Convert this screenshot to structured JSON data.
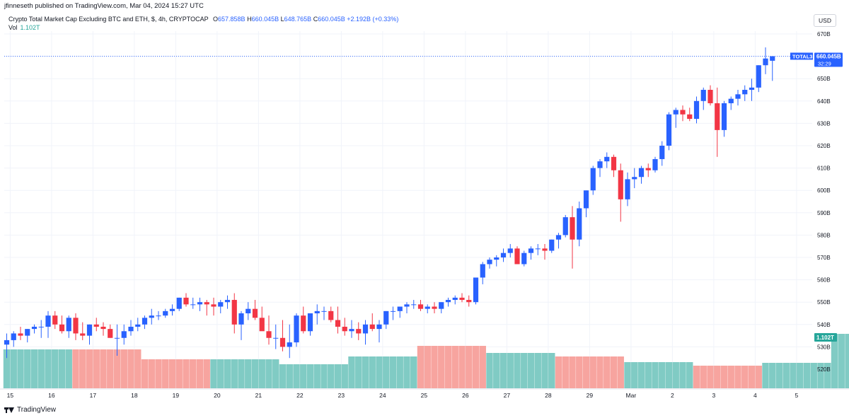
{
  "header": {
    "published_by": "jfinneseth published on TradingView.com, Mar 04, 2024 15:27 UTC",
    "symbol_line": "Crypto Total Market Cap Excluding BTC and ETH, $, 4h, CRYPTOCAP",
    "o_label": "O",
    "o_value": "657.858B",
    "h_label": "H",
    "h_value": "660.045B",
    "l_label": "L",
    "l_value": "648.765B",
    "c_label": "C",
    "c_value": "660.045B",
    "change": "+2.192B (+0.33%)",
    "vol_label": "Vol",
    "vol_value": "1.102T",
    "currency_button": "USD"
  },
  "footer": {
    "brand": "TradingView"
  },
  "colors": {
    "up": "#2962ff",
    "down": "#f23645",
    "vol_up": "#80cbc4",
    "vol_down": "#f7a49f",
    "grid": "#f0f3fa"
  },
  "chart_data": {
    "type": "candlestick",
    "symbol": "TOTAL3",
    "interval": "4h",
    "price_axis": {
      "ylim": [
        514,
        672
      ],
      "ticks": [
        "520B",
        "530B",
        "540B",
        "550B",
        "560B",
        "570B",
        "580B",
        "590B",
        "600B",
        "610B",
        "620B",
        "630B",
        "640B",
        "650B",
        "660B",
        "670B"
      ],
      "tick_values": [
        520,
        530,
        540,
        550,
        560,
        570,
        580,
        590,
        600,
        610,
        620,
        630,
        640,
        650,
        660,
        670
      ]
    },
    "x_axis": {
      "ticks": [
        "15",
        "16",
        "17",
        "18",
        "19",
        "20",
        "21",
        "22",
        "23",
        "24",
        "25",
        "26",
        "27",
        "28",
        "29",
        "Mar",
        "2",
        "3",
        "4",
        "5"
      ],
      "tick_index": [
        0.5,
        6.5,
        12.5,
        18.5,
        24.5,
        30.5,
        36.5,
        42.5,
        48.5,
        54.5,
        60.5,
        66.5,
        72.5,
        78.5,
        84.5,
        90.5,
        96.5,
        102.5,
        108.5,
        114.5
      ]
    },
    "last_price_label": {
      "symbol": "TOTAL3",
      "value": "660.045B",
      "countdown": "32:29",
      "price": 660.045
    },
    "volume_label": {
      "value": "1.102T"
    },
    "candles": [
      [
        531,
        536,
        525,
        533
      ],
      [
        533,
        537,
        530,
        536
      ],
      [
        536,
        539,
        533,
        535
      ],
      [
        535,
        538,
        532,
        538
      ],
      [
        538,
        540,
        536,
        539
      ],
      [
        539,
        542,
        534,
        539
      ],
      [
        539,
        546,
        534,
        544
      ],
      [
        544,
        546,
        538,
        540
      ],
      [
        540,
        544,
        536,
        537
      ],
      [
        537,
        544,
        534,
        543
      ],
      [
        543,
        545,
        533,
        536
      ],
      [
        536,
        541,
        533,
        535
      ],
      [
        535,
        540,
        531,
        540
      ],
      [
        540,
        543,
        537,
        539
      ],
      [
        539,
        541,
        535,
        538
      ],
      [
        538,
        540,
        534,
        534
      ],
      [
        534,
        540,
        526,
        534
      ],
      [
        534,
        540,
        531,
        537
      ],
      [
        537,
        542,
        535,
        539
      ],
      [
        539,
        543,
        537,
        540
      ],
      [
        540,
        544,
        538,
        543
      ],
      [
        543,
        547,
        540,
        544
      ],
      [
        544,
        546,
        542,
        544
      ],
      [
        544,
        547,
        543,
        546
      ],
      [
        546,
        549,
        544,
        547
      ],
      [
        547,
        552,
        546,
        552
      ],
      [
        552,
        554,
        548,
        549
      ],
      [
        549,
        552,
        547,
        549
      ],
      [
        549,
        552,
        546,
        550
      ],
      [
        550,
        551,
        544,
        549
      ],
      [
        549,
        552,
        544,
        548
      ],
      [
        548,
        551,
        545,
        550
      ],
      [
        550,
        553,
        547,
        551
      ],
      [
        551,
        554,
        536,
        540
      ],
      [
        540,
        546,
        533,
        545
      ],
      [
        545,
        550,
        542,
        547
      ],
      [
        547,
        551,
        542,
        543
      ],
      [
        543,
        548,
        538,
        537
      ],
      [
        537,
        544,
        531,
        534
      ],
      [
        534,
        540,
        529,
        534
      ],
      [
        534,
        542,
        528,
        530
      ],
      [
        530,
        540,
        525,
        532
      ],
      [
        532,
        545,
        530,
        544
      ],
      [
        544,
        548,
        536,
        537
      ],
      [
        537,
        545,
        535,
        545
      ],
      [
        545,
        549,
        540,
        546
      ],
      [
        546,
        548,
        542,
        546
      ],
      [
        546,
        548,
        541,
        542
      ],
      [
        542,
        548,
        536,
        539
      ],
      [
        539,
        543,
        535,
        537
      ],
      [
        537,
        542,
        534,
        538
      ],
      [
        538,
        541,
        533,
        536
      ],
      [
        536,
        542,
        531,
        540
      ],
      [
        540,
        545,
        537,
        538
      ],
      [
        538,
        542,
        532,
        540
      ],
      [
        540,
        546,
        538,
        546
      ],
      [
        546,
        548,
        542,
        546
      ],
      [
        546,
        548,
        543,
        548
      ],
      [
        548,
        550,
        545,
        549
      ],
      [
        549,
        551,
        547,
        549
      ],
      [
        549,
        551,
        546,
        547
      ],
      [
        547,
        549,
        545,
        548
      ],
      [
        548,
        550,
        545,
        547
      ],
      [
        547,
        550,
        545,
        550
      ],
      [
        550,
        552,
        548,
        551
      ],
      [
        551,
        553,
        549,
        552
      ],
      [
        552,
        554,
        550,
        551
      ],
      [
        551,
        553,
        548,
        550
      ],
      [
        550,
        561,
        549,
        561
      ],
      [
        561,
        568,
        558,
        567
      ],
      [
        567,
        570,
        565,
        569
      ],
      [
        569,
        571,
        566,
        570
      ],
      [
        570,
        574,
        568,
        572
      ],
      [
        572,
        576,
        570,
        574
      ],
      [
        574,
        575,
        567,
        567
      ],
      [
        567,
        573,
        566,
        572
      ],
      [
        572,
        575,
        569,
        574
      ],
      [
        574,
        576,
        571,
        574
      ],
      [
        574,
        576,
        569,
        573
      ],
      [
        573,
        578,
        572,
        578
      ],
      [
        578,
        581,
        574,
        580
      ],
      [
        580,
        589,
        579,
        588
      ],
      [
        588,
        593,
        565,
        578
      ],
      [
        578,
        595,
        575,
        592
      ],
      [
        592,
        600,
        588,
        600
      ],
      [
        600,
        611,
        598,
        610
      ],
      [
        610,
        614,
        606,
        613
      ],
      [
        613,
        617,
        610,
        615
      ],
      [
        615,
        616,
        606,
        609
      ],
      [
        609,
        612,
        586,
        596
      ],
      [
        596,
        608,
        593,
        605
      ],
      [
        605,
        610,
        601,
        606
      ],
      [
        606,
        611,
        603,
        610
      ],
      [
        610,
        612,
        606,
        609
      ],
      [
        609,
        615,
        608,
        614
      ],
      [
        614,
        622,
        611,
        620
      ],
      [
        620,
        635,
        618,
        634
      ],
      [
        634,
        637,
        628,
        636
      ],
      [
        636,
        638,
        631,
        634
      ],
      [
        634,
        637,
        631,
        632
      ],
      [
        632,
        642,
        630,
        640
      ],
      [
        640,
        646,
        636,
        645
      ],
      [
        645,
        647,
        638,
        639
      ],
      [
        639,
        646,
        615,
        627
      ],
      [
        627,
        640,
        624,
        639
      ],
      [
        639,
        642,
        636,
        641
      ],
      [
        641,
        645,
        638,
        643
      ],
      [
        643,
        647,
        640,
        645
      ],
      [
        645,
        650,
        640,
        646
      ],
      [
        646,
        656,
        644,
        656
      ],
      [
        656,
        664,
        652,
        659
      ],
      [
        658,
        660,
        649,
        660
      ]
    ],
    "volume_segments": [
      {
        "count": 10,
        "dir": "up",
        "value": "1.17T",
        "h": 55
      },
      {
        "count": 10,
        "dir": "down",
        "value": "1.17T",
        "h": 55
      },
      {
        "count": 10,
        "dir": "down",
        "value": "0.87T",
        "h": 41
      },
      {
        "count": 10,
        "dir": "up",
        "value": "0.87T",
        "h": 41
      },
      {
        "count": 10,
        "dir": "up",
        "value": "0.73T",
        "h": 34
      },
      {
        "count": 10,
        "dir": "up",
        "value": "0.95T",
        "h": 45
      },
      {
        "count": 10,
        "dir": "down",
        "value": "1.27T",
        "h": 60
      },
      {
        "count": 10,
        "dir": "up",
        "value": "1.06T",
        "h": 50
      },
      {
        "count": 10,
        "dir": "down",
        "value": "0.95T",
        "h": 45
      },
      {
        "count": 10,
        "dir": "up",
        "value": "0.78T",
        "h": 37
      },
      {
        "count": 10,
        "dir": "down",
        "value": "0.68T",
        "h": 32
      },
      {
        "count": 10,
        "dir": "up",
        "value": "0.76T",
        "h": 36
      },
      {
        "count": 10,
        "dir": "up",
        "value": "1.62T",
        "h": 77
      },
      {
        "count": 3,
        "dir": "down",
        "value": "1.62T",
        "h": 77
      },
      {
        "count": 10,
        "dir": "down",
        "value": "1.51T",
        "h": 71
      },
      {
        "count": 10,
        "dir": "up",
        "value": "2.81T",
        "h": 133
      },
      {
        "count": 3,
        "dir": "down",
        "value": "2.81T",
        "h": 133
      },
      {
        "count": 5,
        "dir": "down",
        "value": "1.73T",
        "h": 82
      },
      {
        "count": 5,
        "dir": "up",
        "value": "1.73T",
        "h": 82
      },
      {
        "count": 10,
        "dir": "up",
        "value": "1.42T",
        "h": 67
      },
      {
        "count": 10,
        "dir": "up",
        "value": "1.16T",
        "h": 55
      },
      {
        "count": 4,
        "dir": "down",
        "value": "1.16T",
        "h": 55
      },
      {
        "count": 6,
        "dir": "up",
        "value": "1.53T",
        "h": 72
      }
    ]
  }
}
